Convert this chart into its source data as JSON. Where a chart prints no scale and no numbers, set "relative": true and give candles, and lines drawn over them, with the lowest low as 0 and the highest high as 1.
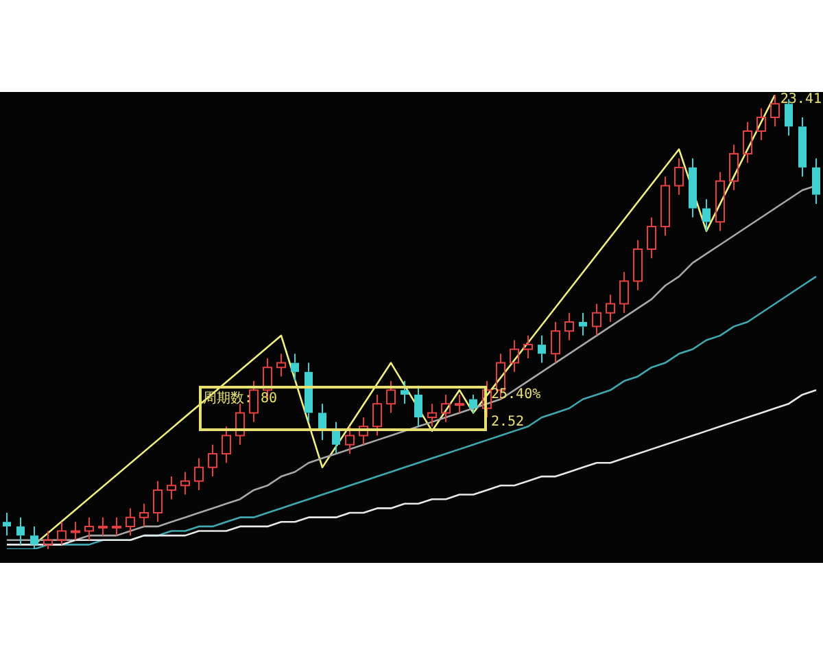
{
  "chart_data": {
    "type": "candlestick",
    "relative": true,
    "categories": [
      null,
      null,
      null,
      null,
      null,
      null,
      null,
      null,
      null,
      null,
      null,
      null,
      null,
      null,
      null,
      null,
      null,
      null,
      null,
      null,
      null,
      null,
      null,
      null,
      null,
      null,
      null,
      null,
      null,
      null,
      null,
      null,
      null,
      null,
      null,
      null,
      null,
      null,
      null,
      null,
      null,
      null,
      null,
      null,
      null,
      null,
      null,
      null,
      null,
      null,
      null,
      null,
      null,
      null,
      null,
      null,
      null,
      null,
      null,
      null
    ],
    "ohlc": [
      [
        0.06,
        0.08,
        0.03,
        0.05
      ],
      [
        0.05,
        0.07,
        0.01,
        0.03
      ],
      [
        0.03,
        0.05,
        0,
        0.01
      ],
      [
        0.01,
        0.04,
        0,
        0.02
      ],
      [
        0.02,
        0.06,
        0.01,
        0.04
      ],
      [
        0.04,
        0.06,
        0.02,
        0.04
      ],
      [
        0.04,
        0.07,
        0.02,
        0.05
      ],
      [
        0.05,
        0.07,
        0.03,
        0.05
      ],
      [
        0.05,
        0.07,
        0.03,
        0.05
      ],
      [
        0.05,
        0.09,
        0.03,
        0.07
      ],
      [
        0.07,
        0.1,
        0.05,
        0.08
      ],
      [
        0.08,
        0.15,
        0.06,
        0.13
      ],
      [
        0.13,
        0.16,
        0.11,
        0.14
      ],
      [
        0.14,
        0.17,
        0.12,
        0.15
      ],
      [
        0.15,
        0.2,
        0.13,
        0.18
      ],
      [
        0.18,
        0.23,
        0.16,
        0.21
      ],
      [
        0.21,
        0.27,
        0.19,
        0.25
      ],
      [
        0.25,
        0.32,
        0.23,
        0.3
      ],
      [
        0.3,
        0.37,
        0.28,
        0.35
      ],
      [
        0.35,
        0.42,
        0.33,
        0.4
      ],
      [
        0.4,
        0.43,
        0.38,
        0.41
      ],
      [
        0.41,
        0.43,
        0.37,
        0.39
      ],
      [
        0.39,
        0.41,
        0.28,
        0.3
      ],
      [
        0.3,
        0.32,
        0.24,
        0.26
      ],
      [
        0.26,
        0.28,
        0.21,
        0.23
      ],
      [
        0.23,
        0.27,
        0.21,
        0.25
      ],
      [
        0.25,
        0.29,
        0.23,
        0.27
      ],
      [
        0.27,
        0.34,
        0.25,
        0.32
      ],
      [
        0.32,
        0.37,
        0.3,
        0.35
      ],
      [
        0.35,
        0.37,
        0.32,
        0.34
      ],
      [
        0.34,
        0.36,
        0.27,
        0.29
      ],
      [
        0.29,
        0.32,
        0.27,
        0.3
      ],
      [
        0.3,
        0.34,
        0.28,
        0.32
      ],
      [
        0.32,
        0.34,
        0.3,
        0.32
      ],
      [
        0.33,
        0.34,
        0.3,
        0.31
      ],
      [
        0.31,
        0.37,
        0.29,
        0.35
      ],
      [
        0.35,
        0.43,
        0.33,
        0.41
      ],
      [
        0.41,
        0.46,
        0.39,
        0.44
      ],
      [
        0.44,
        0.47,
        0.42,
        0.45
      ],
      [
        0.45,
        0.47,
        0.41,
        0.43
      ],
      [
        0.43,
        0.5,
        0.41,
        0.48
      ],
      [
        0.48,
        0.52,
        0.46,
        0.5
      ],
      [
        0.5,
        0.52,
        0.47,
        0.49
      ],
      [
        0.49,
        0.54,
        0.47,
        0.52
      ],
      [
        0.52,
        0.56,
        0.5,
        0.54
      ],
      [
        0.54,
        0.61,
        0.52,
        0.59
      ],
      [
        0.59,
        0.68,
        0.57,
        0.66
      ],
      [
        0.66,
        0.73,
        0.64,
        0.71
      ],
      [
        0.71,
        0.82,
        0.69,
        0.8
      ],
      [
        0.8,
        0.86,
        0.78,
        0.84
      ],
      [
        0.84,
        0.86,
        0.73,
        0.75
      ],
      [
        0.75,
        0.77,
        0.7,
        0.72
      ],
      [
        0.72,
        0.83,
        0.7,
        0.81
      ],
      [
        0.81,
        0.89,
        0.79,
        0.87
      ],
      [
        0.87,
        0.94,
        0.85,
        0.92
      ],
      [
        0.92,
        0.97,
        0.9,
        0.95
      ],
      [
        0.95,
        1,
        0.93,
        0.98
      ],
      [
        0.98,
        0.99,
        0.91,
        0.93
      ],
      [
        0.93,
        0.95,
        0.82,
        0.84
      ],
      [
        0.84,
        0.86,
        0.76,
        0.78
      ]
    ],
    "series": [
      {
        "type": "line",
        "color": "#e8e8e8",
        "values": [
          0.01,
          0.01,
          0.01,
          0.01,
          0.01,
          0.02,
          0.02,
          0.02,
          0.02,
          0.02,
          0.03,
          0.03,
          0.03,
          0.03,
          0.04,
          0.04,
          0.04,
          0.05,
          0.05,
          0.05,
          0.06,
          0.06,
          0.07,
          0.07,
          0.07,
          0.08,
          0.08,
          0.09,
          0.09,
          0.1,
          0.1,
          0.11,
          0.11,
          0.12,
          0.12,
          0.13,
          0.14,
          0.14,
          0.15,
          0.16,
          0.16,
          0.17,
          0.18,
          0.19,
          0.19,
          0.2,
          0.21,
          0.22,
          0.23,
          0.24,
          0.25,
          0.26,
          0.27,
          0.28,
          0.29,
          0.3,
          0.31,
          0.32,
          0.34,
          0.35
        ]
      },
      {
        "type": "line",
        "color": "#3fa8b0",
        "values": [
          0,
          0,
          0,
          0.01,
          0.01,
          0.01,
          0.01,
          0.02,
          0.02,
          0.02,
          0.03,
          0.03,
          0.04,
          0.04,
          0.05,
          0.05,
          0.06,
          0.07,
          0.07,
          0.08,
          0.09,
          0.1,
          0.11,
          0.12,
          0.13,
          0.14,
          0.15,
          0.16,
          0.17,
          0.18,
          0.19,
          0.2,
          0.21,
          0.22,
          0.23,
          0.24,
          0.25,
          0.26,
          0.27,
          0.29,
          0.3,
          0.31,
          0.33,
          0.34,
          0.35,
          0.37,
          0.38,
          0.4,
          0.41,
          0.43,
          0.44,
          0.46,
          0.47,
          0.49,
          0.5,
          0.52,
          0.54,
          0.56,
          0.58,
          0.6
        ]
      },
      {
        "type": "line",
        "color": "#a8a8a8",
        "values": [
          0.02,
          0.02,
          0.02,
          0.02,
          0.02,
          0.02,
          0.03,
          0.03,
          0.03,
          0.04,
          0.05,
          0.05,
          0.06,
          0.07,
          0.08,
          0.09,
          0.1,
          0.11,
          0.13,
          0.14,
          0.16,
          0.17,
          0.19,
          0.2,
          0.21,
          0.22,
          0.23,
          0.24,
          0.25,
          0.26,
          0.27,
          0.28,
          0.29,
          0.3,
          0.31,
          0.32,
          0.33,
          0.35,
          0.37,
          0.39,
          0.41,
          0.43,
          0.45,
          0.47,
          0.49,
          0.51,
          0.53,
          0.55,
          0.58,
          0.6,
          0.63,
          0.65,
          0.67,
          0.69,
          0.71,
          0.73,
          0.75,
          0.77,
          0.79,
          0.8
        ]
      },
      {
        "type": "line",
        "color": "#f0f080",
        "values": [
          null,
          null,
          0.01,
          null,
          null,
          null,
          null,
          null,
          null,
          null,
          null,
          null,
          null,
          null,
          null,
          null,
          null,
          null,
          null,
          null,
          0.47,
          null,
          null,
          0.18,
          null,
          null,
          null,
          null,
          0.41,
          null,
          null,
          0.26,
          null,
          0.35,
          0.3,
          null,
          null,
          null,
          null,
          null,
          null,
          null,
          null,
          null,
          null,
          null,
          null,
          null,
          null,
          0.88,
          null,
          0.7,
          null,
          null,
          null,
          null,
          1,
          null,
          null,
          null
        ]
      }
    ],
    "annotations": [
      "周期数: 80",
      "25.40%",
      "2.52",
      "23.41"
    ]
  }
}
